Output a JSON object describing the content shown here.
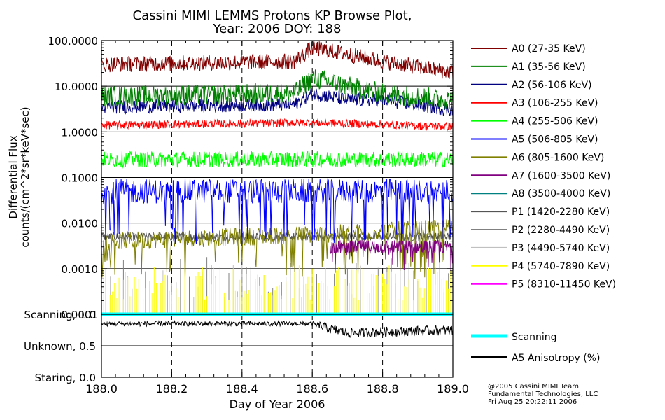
{
  "chart_data": [
    {
      "type": "line",
      "title_line1": "Cassini MIMI LEMMS Protons KP Browse Plot,",
      "title_line2": "Year: 2006 DOY: 188",
      "ylabel_line1": "Differential Flux",
      "ylabel_line2": "counts/(cm^2*sr*keV*sec)",
      "yscale": "log",
      "ylim": [
        0.0001,
        100
      ],
      "xlim": [
        188.0,
        189.0
      ],
      "ytick_labels": [
        "100.0000",
        "10.0000",
        "1.0000",
        "0.1000",
        "0.0100",
        "0.0010",
        "0.0001"
      ],
      "ytick_values": [
        100,
        10,
        1,
        0.1,
        0.01,
        0.001,
        0.0001
      ],
      "grid": "dashed vertical lines at x ticks; solid horizontal lines at decades",
      "legend_position": "right",
      "series": [
        {
          "name": "A0 (27-35 KeV)",
          "color": "#800000",
          "typical": 30,
          "points": [
            [
              188.0,
              30
            ],
            [
              188.55,
              35
            ],
            [
              188.6,
              70
            ],
            [
              188.7,
              50
            ],
            [
              188.8,
              35
            ],
            [
              189.0,
              20
            ]
          ]
        },
        {
          "name": "A1 (35-56 KeV)",
          "color": "#008000",
          "typical": 6,
          "points": [
            [
              188.0,
              6
            ],
            [
              188.55,
              7
            ],
            [
              188.6,
              15
            ],
            [
              188.7,
              10
            ],
            [
              188.8,
              7
            ],
            [
              189.0,
              5
            ]
          ]
        },
        {
          "name": "A2 (56-106 KeV)",
          "color": "#000080",
          "typical": 3.5,
          "points": [
            [
              188.0,
              3.5
            ],
            [
              188.55,
              4
            ],
            [
              188.6,
              7
            ],
            [
              188.7,
              5
            ],
            [
              188.8,
              5
            ],
            [
              189.0,
              3
            ]
          ]
        },
        {
          "name": "A3 (106-255 KeV)",
          "color": "#ff0000",
          "typical": 1.4,
          "points": [
            [
              188.0,
              1.4
            ],
            [
              188.6,
              1.6
            ],
            [
              189.0,
              1.3
            ]
          ]
        },
        {
          "name": "A4 (255-506 KeV)",
          "color": "#00ff00",
          "typical": 0.25,
          "points": [
            [
              188.0,
              0.25
            ],
            [
              189.0,
              0.25
            ]
          ]
        },
        {
          "name": "A5 (506-805 KeV)",
          "color": "#0000ff",
          "typical": 0.05,
          "points": [
            [
              188.0,
              0.05
            ],
            [
              189.0,
              0.05
            ]
          ]
        },
        {
          "name": "A6 (805-1600 KeV)",
          "color": "#808000",
          "typical": 0.005,
          "points": [
            [
              188.0,
              0.004
            ],
            [
              188.7,
              0.006
            ],
            [
              189.0,
              0.008
            ]
          ]
        },
        {
          "name": "A7 (1600-3500 KeV)",
          "color": "#800080",
          "typical": 0.003,
          "points": [
            [
              188.0,
              0.003
            ],
            [
              189.0,
              0.003
            ]
          ]
        },
        {
          "name": "A8 (3500-4000 KeV)",
          "color": "#008080",
          "typical": null,
          "points": []
        },
        {
          "name": "P1 (1420-2280 KeV)",
          "color": "#555555",
          "typical": 0.005,
          "points": [
            [
              188.0,
              0.005
            ],
            [
              189.0,
              0.005
            ]
          ]
        },
        {
          "name": "P2 (2280-4490 KeV)",
          "color": "#808080",
          "typical": 0.0003,
          "points": [
            [
              188.0,
              0.0003
            ],
            [
              189.0,
              0.0003
            ]
          ]
        },
        {
          "name": "P3 (4490-5740 KeV)",
          "color": "#c0c0c0",
          "typical": 0.0002,
          "points": [
            [
              188.0,
              0.0002
            ],
            [
              189.0,
              0.0002
            ]
          ]
        },
        {
          "name": "P4 (5740-7890 KeV)",
          "color": "#ffff00",
          "typical": 0.0002,
          "points": [
            [
              188.0,
              0.0002
            ],
            [
              189.0,
              0.0002
            ]
          ]
        },
        {
          "name": "P5 (8310-11450 KeV)",
          "color": "#ff00ff",
          "typical": null,
          "points": []
        }
      ]
    },
    {
      "type": "line",
      "xlabel": "Day of Year 2006",
      "xlim": [
        188.0,
        189.0
      ],
      "xtick_labels": [
        "188.0",
        "188.2",
        "188.4",
        "188.6",
        "188.8",
        "189.0"
      ],
      "xtick_values": [
        188.0,
        188.2,
        188.4,
        188.6,
        188.8,
        189.0
      ],
      "ylim": [
        0.0,
        1.0
      ],
      "ytick_labels": [
        "Scanning, 1.0",
        "Unknown, 0.5",
        "Staring, 0.0"
      ],
      "ytick_values": [
        1.0,
        0.5,
        0.0
      ],
      "legend_position": "right",
      "series": [
        {
          "name": "Scanning",
          "color": "#00ffff",
          "values": [
            [
              188.0,
              1.0
            ],
            [
              189.0,
              1.0
            ]
          ]
        },
        {
          "name": "A5 Anisotropy (%)",
          "color": "#000000",
          "typical": 0.83,
          "points": [
            [
              188.0,
              0.85
            ],
            [
              188.6,
              0.85
            ],
            [
              188.7,
              0.7
            ],
            [
              188.8,
              0.72
            ],
            [
              189.0,
              0.75
            ]
          ]
        }
      ]
    }
  ],
  "credits": {
    "line1": "@2005 Cassini MIMI Team",
    "line2": "Fundamental Technologies, LLC",
    "line3": "Fri Aug 25 20:22:11 2006"
  },
  "colors": {
    "background": "#ffffff",
    "axis": "#000000",
    "grid": "#000000"
  }
}
